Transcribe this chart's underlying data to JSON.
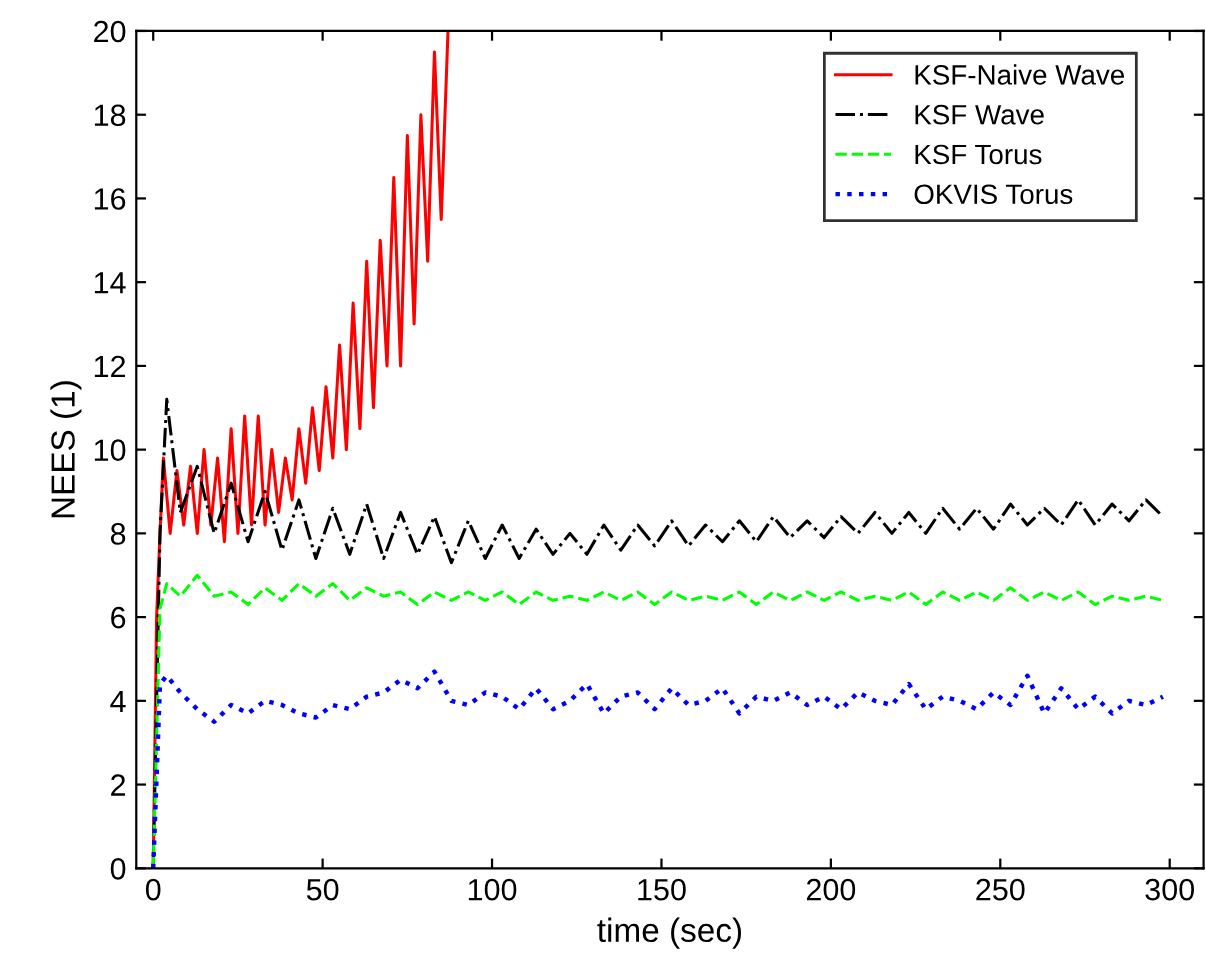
{
  "chart_data": {
    "type": "line",
    "xlabel": "time (sec)",
    "ylabel": "NEES (1)",
    "xlim": [
      -5,
      310
    ],
    "ylim": [
      0,
      20
    ],
    "xticks": [
      0,
      50,
      100,
      150,
      200,
      250,
      300
    ],
    "yticks": [
      0,
      2,
      4,
      6,
      8,
      10,
      12,
      14,
      16,
      18,
      20
    ],
    "grid": false,
    "legend": "top right",
    "marker": "none",
    "series": [
      {
        "name": "KSF-Naive Wave",
        "color": "#ff0000",
        "line_style": "solid",
        "x": [
          0,
          1,
          2,
          3,
          5,
          7,
          9,
          11,
          13,
          15,
          17,
          19,
          21,
          23,
          25,
          27,
          29,
          31,
          33,
          35,
          37,
          39,
          41,
          43,
          45,
          47,
          49,
          51,
          53,
          55,
          57,
          59,
          61,
          63,
          65,
          67,
          69,
          71,
          73,
          75,
          77,
          79,
          81,
          83,
          85,
          87
        ],
        "values": [
          0,
          6,
          8,
          9.8,
          8,
          9.5,
          8.2,
          9.6,
          8,
          10,
          8.2,
          9.8,
          7.8,
          10.5,
          8,
          10.8,
          8.2,
          10.8,
          8.2,
          10,
          8.5,
          9.8,
          8.8,
          10.5,
          9.2,
          11,
          9.5,
          11.5,
          9.8,
          12.5,
          10,
          13.5,
          10.5,
          14.5,
          11,
          15,
          12,
          16.5,
          12,
          17.5,
          13,
          18,
          14.5,
          19.5,
          15.5,
          20
        ]
      },
      {
        "name": "KSF Wave",
        "color": "#000000",
        "line_style": "dashdot",
        "x": [
          0,
          2,
          4,
          8,
          13,
          18,
          23,
          28,
          33,
          38,
          43,
          48,
          53,
          58,
          63,
          68,
          73,
          78,
          83,
          88,
          93,
          98,
          103,
          108,
          113,
          118,
          123,
          128,
          133,
          138,
          143,
          148,
          153,
          158,
          163,
          168,
          173,
          178,
          183,
          188,
          193,
          198,
          203,
          208,
          213,
          218,
          223,
          228,
          233,
          238,
          243,
          248,
          253,
          258,
          263,
          268,
          273,
          278,
          283,
          288,
          293,
          298
        ],
        "values": [
          0,
          8,
          11.2,
          8.5,
          9.6,
          8,
          9.2,
          7.8,
          9,
          7.6,
          8.8,
          7.4,
          8.6,
          7.5,
          8.7,
          7.4,
          8.5,
          7.5,
          8.4,
          7.3,
          8.3,
          7.4,
          8.2,
          7.4,
          8.1,
          7.5,
          8,
          7.5,
          8.2,
          7.6,
          8.2,
          7.7,
          8.3,
          7.7,
          8.2,
          7.8,
          8.3,
          7.8,
          8.4,
          7.9,
          8.3,
          7.9,
          8.4,
          8,
          8.5,
          8,
          8.5,
          8,
          8.6,
          8.1,
          8.6,
          8.1,
          8.7,
          8.2,
          8.6,
          8.2,
          8.8,
          8.2,
          8.7,
          8.3,
          8.8,
          8.4
        ]
      },
      {
        "name": "KSF Torus",
        "color": "#00ff00",
        "line_style": "dashed",
        "x": [
          0,
          2,
          4,
          8,
          13,
          18,
          23,
          28,
          33,
          38,
          43,
          48,
          53,
          58,
          63,
          68,
          73,
          78,
          83,
          88,
          93,
          98,
          103,
          108,
          113,
          118,
          123,
          128,
          133,
          138,
          143,
          148,
          153,
          158,
          163,
          168,
          173,
          178,
          183,
          188,
          193,
          198,
          203,
          208,
          213,
          218,
          223,
          228,
          233,
          238,
          243,
          248,
          253,
          258,
          263,
          268,
          273,
          278,
          283,
          288,
          293,
          298
        ],
        "values": [
          0,
          6.2,
          6.8,
          6.5,
          7,
          6.5,
          6.6,
          6.3,
          6.7,
          6.4,
          6.8,
          6.5,
          6.8,
          6.4,
          6.7,
          6.5,
          6.6,
          6.3,
          6.6,
          6.4,
          6.6,
          6.4,
          6.6,
          6.3,
          6.6,
          6.4,
          6.5,
          6.4,
          6.6,
          6.4,
          6.6,
          6.3,
          6.6,
          6.4,
          6.5,
          6.4,
          6.6,
          6.3,
          6.6,
          6.4,
          6.6,
          6.4,
          6.6,
          6.4,
          6.5,
          6.4,
          6.6,
          6.3,
          6.6,
          6.4,
          6.6,
          6.4,
          6.7,
          6.4,
          6.6,
          6.4,
          6.6,
          6.3,
          6.5,
          6.4,
          6.5,
          6.4
        ]
      },
      {
        "name": "OKVIS Torus",
        "color": "#0000ff",
        "line_style": "dotted",
        "x": [
          0,
          2,
          4,
          8,
          13,
          18,
          23,
          28,
          33,
          38,
          43,
          48,
          53,
          58,
          63,
          68,
          73,
          78,
          83,
          88,
          93,
          98,
          103,
          108,
          113,
          118,
          123,
          128,
          133,
          138,
          143,
          148,
          153,
          158,
          163,
          168,
          173,
          178,
          183,
          188,
          193,
          198,
          203,
          208,
          213,
          218,
          223,
          228,
          233,
          238,
          243,
          248,
          253,
          258,
          263,
          268,
          273,
          278,
          283,
          288,
          293,
          298
        ],
        "values": [
          0,
          4.4,
          4.6,
          4.2,
          3.8,
          3.5,
          3.9,
          3.7,
          4,
          3.9,
          3.7,
          3.6,
          3.9,
          3.8,
          4.1,
          4.2,
          4.5,
          4.3,
          4.7,
          4,
          3.9,
          4.2,
          4.1,
          3.8,
          4.3,
          3.8,
          4,
          4.4,
          3.7,
          4.1,
          4.2,
          3.8,
          4.3,
          3.9,
          4,
          4.3,
          3.7,
          4.1,
          4,
          4.2,
          3.9,
          4.1,
          3.8,
          4.2,
          4,
          3.9,
          4.4,
          3.8,
          4.1,
          4,
          3.8,
          4.2,
          3.9,
          4.6,
          3.7,
          4.3,
          3.8,
          4.1,
          3.7,
          4,
          3.9,
          4.1
        ]
      }
    ]
  }
}
